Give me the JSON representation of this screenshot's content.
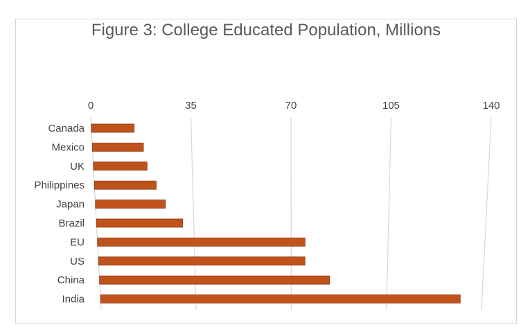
{
  "chart_data": {
    "type": "bar",
    "orientation": "horizontal",
    "title": "Figure 3: College Educated Population, Millions",
    "categories": [
      "Canada",
      "Mexico",
      "UK",
      "Philippines",
      "Japan",
      "Brazil",
      "EU",
      "US",
      "China",
      "India"
    ],
    "values": [
      15,
      18,
      19,
      22,
      25,
      31,
      75,
      75,
      84,
      132
    ],
    "xlim": [
      0,
      140
    ],
    "xticks": [
      "0",
      "35",
      "70",
      "105",
      "140"
    ],
    "xlabel": "",
    "ylabel": "",
    "grid": true,
    "legend": "none",
    "bar_color": "#c0521c",
    "bar_edge_color": "#8a3a12",
    "grid_color": "#d9d9d9"
  }
}
